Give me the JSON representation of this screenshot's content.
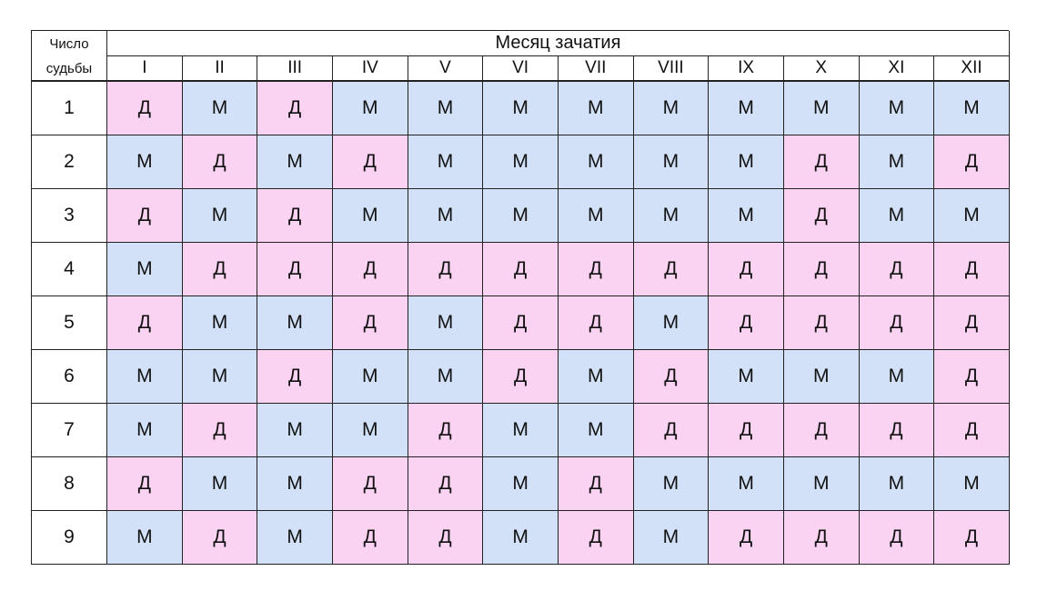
{
  "header": {
    "corner_line1": "Число",
    "corner_line2": "судьбы",
    "title": "Месяц зачатия",
    "months": [
      "I",
      "II",
      "III",
      "IV",
      "V",
      "VI",
      "VII",
      "VIII",
      "IX",
      "X",
      "XI",
      "XII"
    ]
  },
  "colors": {
    "M": "#d2e1f7",
    "Д": "#fbd3f2",
    "border": "#222222"
  },
  "rows": [
    {
      "number": "1",
      "values": [
        "Д",
        "М",
        "Д",
        "М",
        "М",
        "М",
        "М",
        "М",
        "М",
        "М",
        "М",
        "М"
      ]
    },
    {
      "number": "2",
      "values": [
        "М",
        "Д",
        "М",
        "Д",
        "М",
        "М",
        "М",
        "М",
        "М",
        "Д",
        "М",
        "Д"
      ]
    },
    {
      "number": "3",
      "values": [
        "Д",
        "М",
        "Д",
        "М",
        "М",
        "М",
        "М",
        "М",
        "М",
        "Д",
        "М",
        "М"
      ]
    },
    {
      "number": "4",
      "values": [
        "М",
        "Д",
        "Д",
        "Д",
        "Д",
        "Д",
        "Д",
        "Д",
        "Д",
        "Д",
        "Д",
        "Д"
      ]
    },
    {
      "number": "5",
      "values": [
        "Д",
        "М",
        "М",
        "Д",
        "М",
        "Д",
        "Д",
        "М",
        "Д",
        "Д",
        "Д",
        "Д"
      ]
    },
    {
      "number": "6",
      "values": [
        "М",
        "М",
        "Д",
        "М",
        "М",
        "Д",
        "М",
        "Д",
        "М",
        "М",
        "М",
        "Д"
      ]
    },
    {
      "number": "7",
      "values": [
        "М",
        "Д",
        "М",
        "М",
        "Д",
        "М",
        "М",
        "Д",
        "Д",
        "Д",
        "Д",
        "Д"
      ]
    },
    {
      "number": "8",
      "values": [
        "Д",
        "М",
        "М",
        "Д",
        "Д",
        "М",
        "Д",
        "М",
        "М",
        "М",
        "М",
        "М"
      ]
    },
    {
      "number": "9",
      "values": [
        "М",
        "Д",
        "М",
        "Д",
        "Д",
        "М",
        "Д",
        "М",
        "Д",
        "Д",
        "Д",
        "Д"
      ]
    }
  ]
}
